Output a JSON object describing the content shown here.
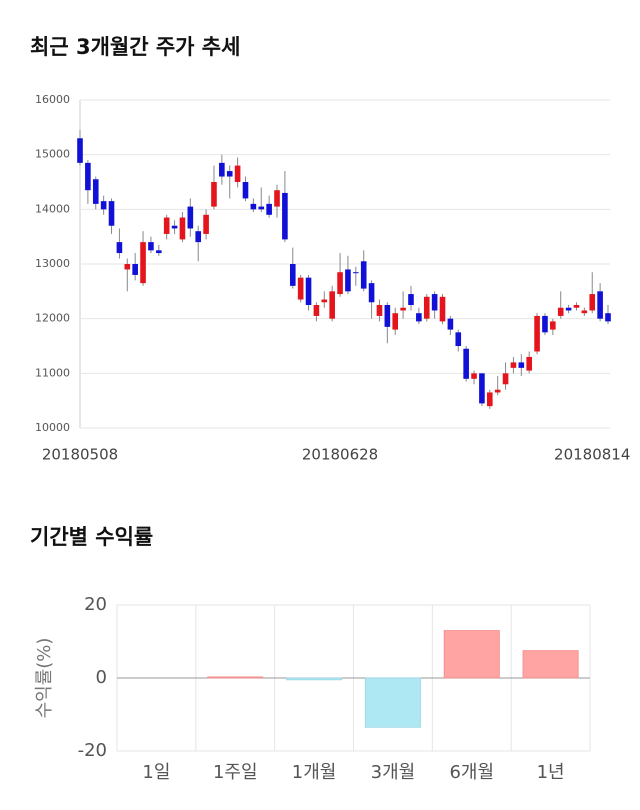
{
  "chart_data": [
    {
      "type": "candlestick",
      "title": "최근 3개월간 주가 추세",
      "categories": [
        "20180508",
        null,
        null,
        null,
        null,
        null,
        null,
        null,
        null,
        null,
        null,
        null,
        null,
        null,
        null,
        null,
        null,
        null,
        null,
        null,
        null,
        null,
        null,
        null,
        null,
        null,
        null,
        null,
        null,
        null,
        null,
        null,
        null,
        "20180628",
        null,
        null,
        null,
        null,
        null,
        null,
        null,
        null,
        null,
        null,
        null,
        null,
        null,
        null,
        null,
        null,
        null,
        null,
        null,
        null,
        null,
        null,
        null,
        null,
        null,
        null,
        null,
        null,
        null,
        null,
        null,
        "20180814",
        null,
        null
      ],
      "open": [
        15300,
        14850,
        14550,
        14150,
        14150,
        13400,
        12900,
        13000,
        12650,
        13400,
        13250,
        13550,
        13700,
        13450,
        14050,
        13600,
        13550,
        14050,
        14850,
        14700,
        14500,
        14500,
        14100,
        14050,
        14100,
        14050,
        14300,
        13000,
        12350,
        12750,
        12050,
        12300,
        12000,
        12450,
        12900,
        12850,
        13050,
        12650,
        12050,
        12250,
        11800,
        12150,
        12450,
        12100,
        12000,
        12450,
        11950,
        12000,
        11750,
        11450,
        10900,
        11000,
        10400,
        10650,
        10800,
        11100,
        11200,
        11050,
        11400,
        12050,
        11800,
        12050,
        12200,
        12200,
        12100,
        12150,
        12500,
        12100
      ],
      "high": [
        15450,
        14900,
        14600,
        14250,
        14200,
        13650,
        13100,
        13200,
        13600,
        13500,
        13350,
        13900,
        13800,
        13950,
        14200,
        13700,
        14000,
        14800,
        15000,
        14800,
        14950,
        14600,
        14200,
        14400,
        14250,
        14450,
        14700,
        13300,
        12800,
        12800,
        12300,
        12500,
        12600,
        13200,
        13150,
        12950,
        13250,
        12700,
        12350,
        12300,
        12200,
        12500,
        12600,
        12200,
        12450,
        12500,
        12450,
        12050,
        11800,
        11500,
        11050,
        11000,
        10700,
        10950,
        11200,
        11300,
        11350,
        11400,
        12100,
        12100,
        12000,
        12500,
        12250,
        12300,
        12200,
        12850,
        12650,
        12250
      ],
      "low": [
        14800,
        14100,
        14000,
        13900,
        13550,
        13100,
        12500,
        12700,
        12600,
        13200,
        13150,
        13450,
        13550,
        13400,
        13500,
        13050,
        13450,
        14000,
        14450,
        14200,
        14400,
        14150,
        13950,
        13950,
        13850,
        13850,
        13400,
        12550,
        12300,
        12150,
        11950,
        12200,
        11950,
        12400,
        12450,
        12600,
        12500,
        12000,
        11950,
        11550,
        11700,
        12000,
        12150,
        11900,
        11950,
        12000,
        11900,
        11700,
        11400,
        10850,
        10800,
        10400,
        10350,
        10600,
        10700,
        11000,
        10950,
        11000,
        11350,
        11700,
        11700,
        12000,
        12100,
        12150,
        12050,
        12100,
        11950,
        11900
      ],
      "close": [
        14850,
        14350,
        14100,
        14000,
        13700,
        13200,
        13000,
        12800,
        13400,
        13250,
        13200,
        13850,
        13650,
        13850,
        13650,
        13400,
        13900,
        14500,
        14600,
        14600,
        14800,
        14200,
        14000,
        14000,
        13900,
        14350,
        13450,
        12600,
        12750,
        12250,
        12250,
        12350,
        12500,
        12850,
        12500,
        12850,
        12550,
        12300,
        12250,
        11850,
        12100,
        12200,
        12250,
        11950,
        12400,
        12150,
        12400,
        11800,
        11500,
        10900,
        11000,
        10450,
        10650,
        10700,
        11000,
        11200,
        11100,
        11300,
        12050,
        11750,
        11950,
        12200,
        12150,
        12250,
        12150,
        12450,
        12000,
        11950
      ],
      "colors": {
        "up": "#e4151c",
        "down": "#1010d6"
      },
      "ylim": [
        10000,
        16000
      ],
      "yticks": [
        10000,
        11000,
        12000,
        13000,
        14000,
        15000,
        16000
      ],
      "grid": true
    },
    {
      "type": "bar",
      "title": "기간별 수익률",
      "ylabel": "수익률(%)",
      "categories": [
        "1일",
        "1주일",
        "1개월",
        "3개월",
        "6개월",
        "1년"
      ],
      "values": [
        0,
        0.3,
        -0.5,
        -13.5,
        13,
        7.5
      ],
      "colors": {
        "positive": "#ffa3a3",
        "negative": "#aee8f2"
      },
      "ylim": [
        -20,
        20
      ],
      "yticks": [
        -20,
        0,
        20
      ],
      "grid": true
    }
  ]
}
